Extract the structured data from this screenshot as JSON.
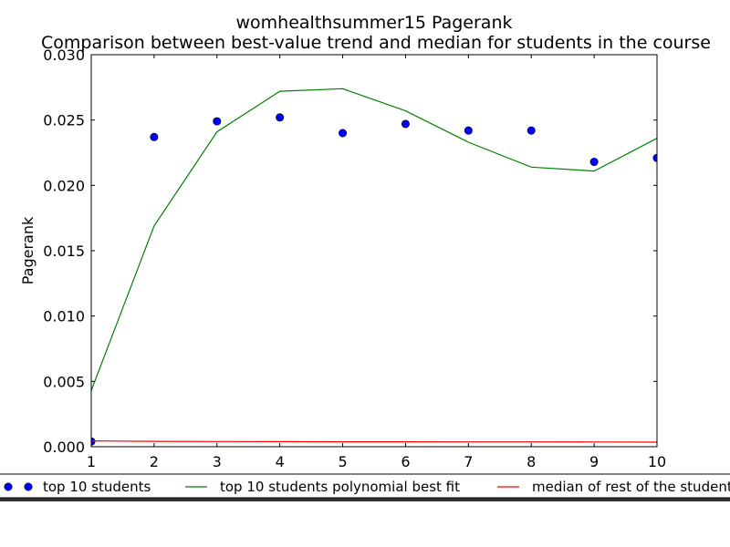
{
  "chart_data": {
    "type": "line",
    "title": "womhealthsummer15 Pagerank",
    "subtitle": "Comparison between best-value trend and median for students in the course",
    "xlabel": "",
    "ylabel": "Pagerank",
    "xlim": [
      1,
      10
    ],
    "ylim": [
      0,
      0.03
    ],
    "x_ticks": [
      "1",
      "2",
      "3",
      "4",
      "5",
      "6",
      "7",
      "8",
      "9",
      "10"
    ],
    "y_ticks": [
      "0.000",
      "0.005",
      "0.010",
      "0.015",
      "0.020",
      "0.025",
      "0.030"
    ],
    "grid": false,
    "legend_position": "below",
    "series": [
      {
        "name": "top 10 students",
        "style": "points",
        "color": "#0000ff",
        "x": [
          1,
          2,
          3,
          4,
          5,
          6,
          7,
          8,
          9,
          10
        ],
        "y": [
          0.0004,
          0.0237,
          0.0249,
          0.0252,
          0.024,
          0.0247,
          0.0242,
          0.0242,
          0.0218,
          0.0221
        ]
      },
      {
        "name": "top 10 students polynomial best fit",
        "style": "line",
        "color": "#008000",
        "x": [
          1,
          2,
          3,
          4,
          5,
          6,
          7,
          8,
          9,
          10
        ],
        "y": [
          0.0043,
          0.0169,
          0.0241,
          0.0272,
          0.0274,
          0.0257,
          0.0233,
          0.0214,
          0.0211,
          0.0236
        ]
      },
      {
        "name": "median of rest of the students",
        "style": "line",
        "color": "#ff0000",
        "x": [
          1,
          2,
          3,
          4,
          5,
          6,
          7,
          8,
          9,
          10
        ],
        "y": [
          0.00045,
          0.00041,
          0.0004,
          0.00039,
          0.00038,
          0.00038,
          0.00037,
          0.00037,
          0.00036,
          0.00035
        ]
      }
    ]
  }
}
